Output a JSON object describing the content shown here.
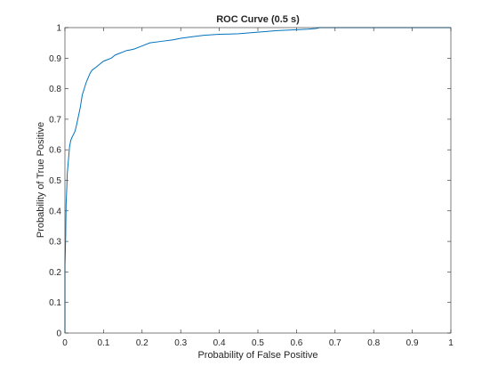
{
  "chart_data": {
    "type": "line",
    "title": "ROC Curve (0.5 s)",
    "xlabel": "Probability of False Positive",
    "ylabel": "Probability of True Positive",
    "xlim": [
      0,
      1
    ],
    "ylim": [
      0,
      1
    ],
    "grid": false,
    "legend": "none",
    "x_ticks": [
      "0",
      "0.1",
      "0.2",
      "0.3",
      "0.4",
      "0.5",
      "0.6",
      "0.7",
      "0.8",
      "0.9",
      "1"
    ],
    "y_ticks": [
      "0",
      "0.1",
      "0.2",
      "0.3",
      "0.4",
      "0.5",
      "0.6",
      "0.7",
      "0.8",
      "0.9",
      "1"
    ],
    "line_color": "#0072BD",
    "series": [
      {
        "x": [
          0,
          0,
          0.002,
          0.003,
          0.005,
          0.006,
          0.008,
          0.01,
          0.012,
          0.015,
          0.018,
          0.022,
          0.026,
          0.03,
          0.035,
          0.04,
          0.045,
          0.05,
          0.055,
          0.06,
          0.065,
          0.07,
          0.075,
          0.08,
          0.09,
          0.1,
          0.11,
          0.12,
          0.13,
          0.14,
          0.15,
          0.16,
          0.17,
          0.18,
          0.2,
          0.22,
          0.25,
          0.28,
          0.3,
          0.33,
          0.36,
          0.4,
          0.45,
          0.5,
          0.55,
          0.6,
          0.63,
          0.65,
          0.66,
          0.7,
          0.8,
          0.9,
          1.0
        ],
        "y": [
          0,
          0.22,
          0.32,
          0.42,
          0.48,
          0.52,
          0.55,
          0.58,
          0.61,
          0.63,
          0.64,
          0.65,
          0.66,
          0.68,
          0.71,
          0.74,
          0.78,
          0.8,
          0.82,
          0.835,
          0.85,
          0.86,
          0.865,
          0.87,
          0.88,
          0.89,
          0.895,
          0.9,
          0.91,
          0.915,
          0.92,
          0.925,
          0.927,
          0.93,
          0.94,
          0.95,
          0.955,
          0.96,
          0.965,
          0.97,
          0.975,
          0.978,
          0.98,
          0.985,
          0.99,
          0.993,
          0.995,
          0.997,
          1.0,
          1.0,
          1.0,
          1.0,
          1.0
        ]
      }
    ]
  }
}
